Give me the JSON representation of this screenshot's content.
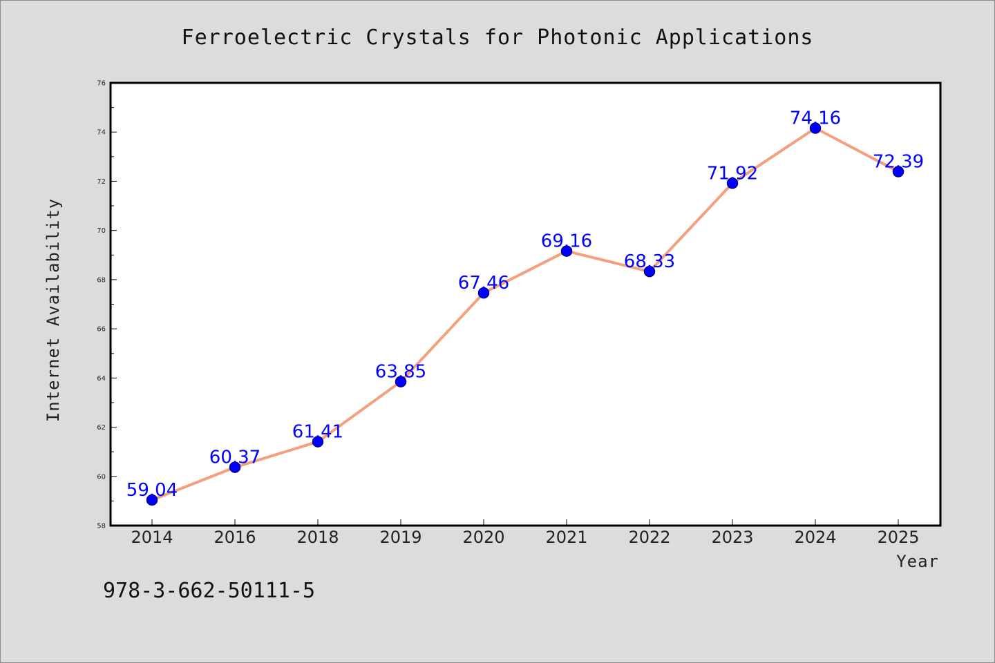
{
  "chart_data": {
    "type": "line",
    "title": "Ferroelectric Crystals for Photonic Applications",
    "xlabel": "Year",
    "ylabel": "Internet Availability",
    "categories": [
      "2014",
      "2016",
      "2018",
      "2019",
      "2020",
      "2021",
      "2022",
      "2023",
      "2024",
      "2025"
    ],
    "series": [
      {
        "values": [
          59.04,
          60.37,
          61.41,
          63.85,
          67.46,
          69.16,
          68.33,
          71.92,
          74.16,
          72.39
        ],
        "data_labels": [
          "59.04",
          "60.37",
          "61.41",
          "63.85",
          "67.46",
          "69.16",
          "68.33",
          "71.92",
          "74.16",
          "72.39"
        ]
      }
    ],
    "ylim": [
      58,
      76
    ],
    "yticks": [
      58,
      60,
      62,
      64,
      66,
      68,
      70,
      72,
      74,
      76
    ],
    "grid": false,
    "legend": "none",
    "colors": {
      "line": "#f4a07e",
      "marker": "#0000ff",
      "data_label": "#0000ff",
      "background": "#dcdcdc",
      "plot_area": "#ffffff"
    }
  },
  "footer": {
    "isbn": "978-3-662-50111-5"
  }
}
